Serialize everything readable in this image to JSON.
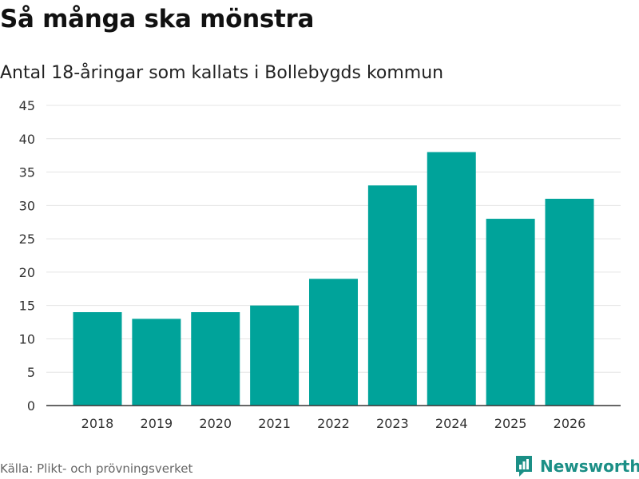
{
  "header": {
    "title": "Så många ska mönstra",
    "subtitle": "Antal 18-åringar som kallats i Bollebygds kommun"
  },
  "footer": {
    "source": "Källa: Plikt- och prövningsverket",
    "brand": "Newsworthy"
  },
  "colors": {
    "bar": "#00a39a",
    "brand": "#1b8f86",
    "grid": "#e4e4e4",
    "axis": "#333333"
  },
  "chart_data": {
    "type": "bar",
    "title": "Så många ska mönstra",
    "subtitle": "Antal 18-åringar som kallats i Bollebygds kommun",
    "xlabel": "",
    "ylabel": "",
    "categories": [
      "2018",
      "2019",
      "2020",
      "2021",
      "2022",
      "2023",
      "2024",
      "2025",
      "2026"
    ],
    "values": [
      14,
      13,
      14,
      15,
      19,
      33,
      38,
      28,
      31
    ],
    "ylim": [
      0,
      45
    ],
    "yticks": [
      0,
      5,
      10,
      15,
      20,
      25,
      30,
      35,
      40,
      45
    ],
    "grid": true,
    "legend": "none"
  }
}
